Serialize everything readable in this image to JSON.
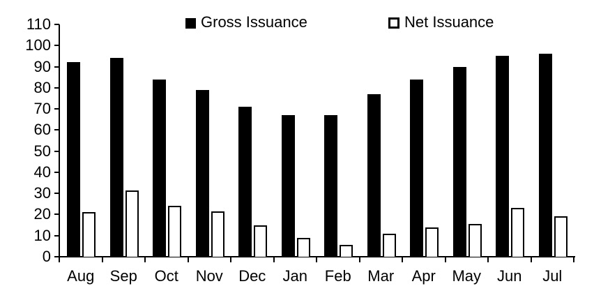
{
  "chart_data": {
    "type": "bar",
    "title": "",
    "xlabel": "",
    "ylabel": "",
    "categories": [
      "Aug",
      "Sep",
      "Oct",
      "Nov",
      "Dec",
      "Jan",
      "Feb",
      "Mar",
      "Apr",
      "May",
      "Jun",
      "Jul"
    ],
    "series": [
      {
        "name": "Gross Issuance",
        "fill": "#000000",
        "values": [
          92,
          94,
          84,
          79,
          71,
          67,
          67,
          77,
          84,
          90,
          95,
          96
        ]
      },
      {
        "name": "Net Issuance",
        "fill": "#ffffff",
        "border": "#000000",
        "values": [
          21,
          31.5,
          24,
          21.5,
          15,
          9,
          5.5,
          11,
          14,
          15.5,
          23,
          19
        ]
      }
    ],
    "ylim": [
      0,
      110
    ],
    "yticks": [
      0,
      10,
      20,
      30,
      40,
      50,
      60,
      70,
      80,
      90,
      100,
      110
    ],
    "grid": false,
    "legend_position": "top"
  },
  "colors": {
    "axis": "#000000",
    "background": "#ffffff"
  }
}
